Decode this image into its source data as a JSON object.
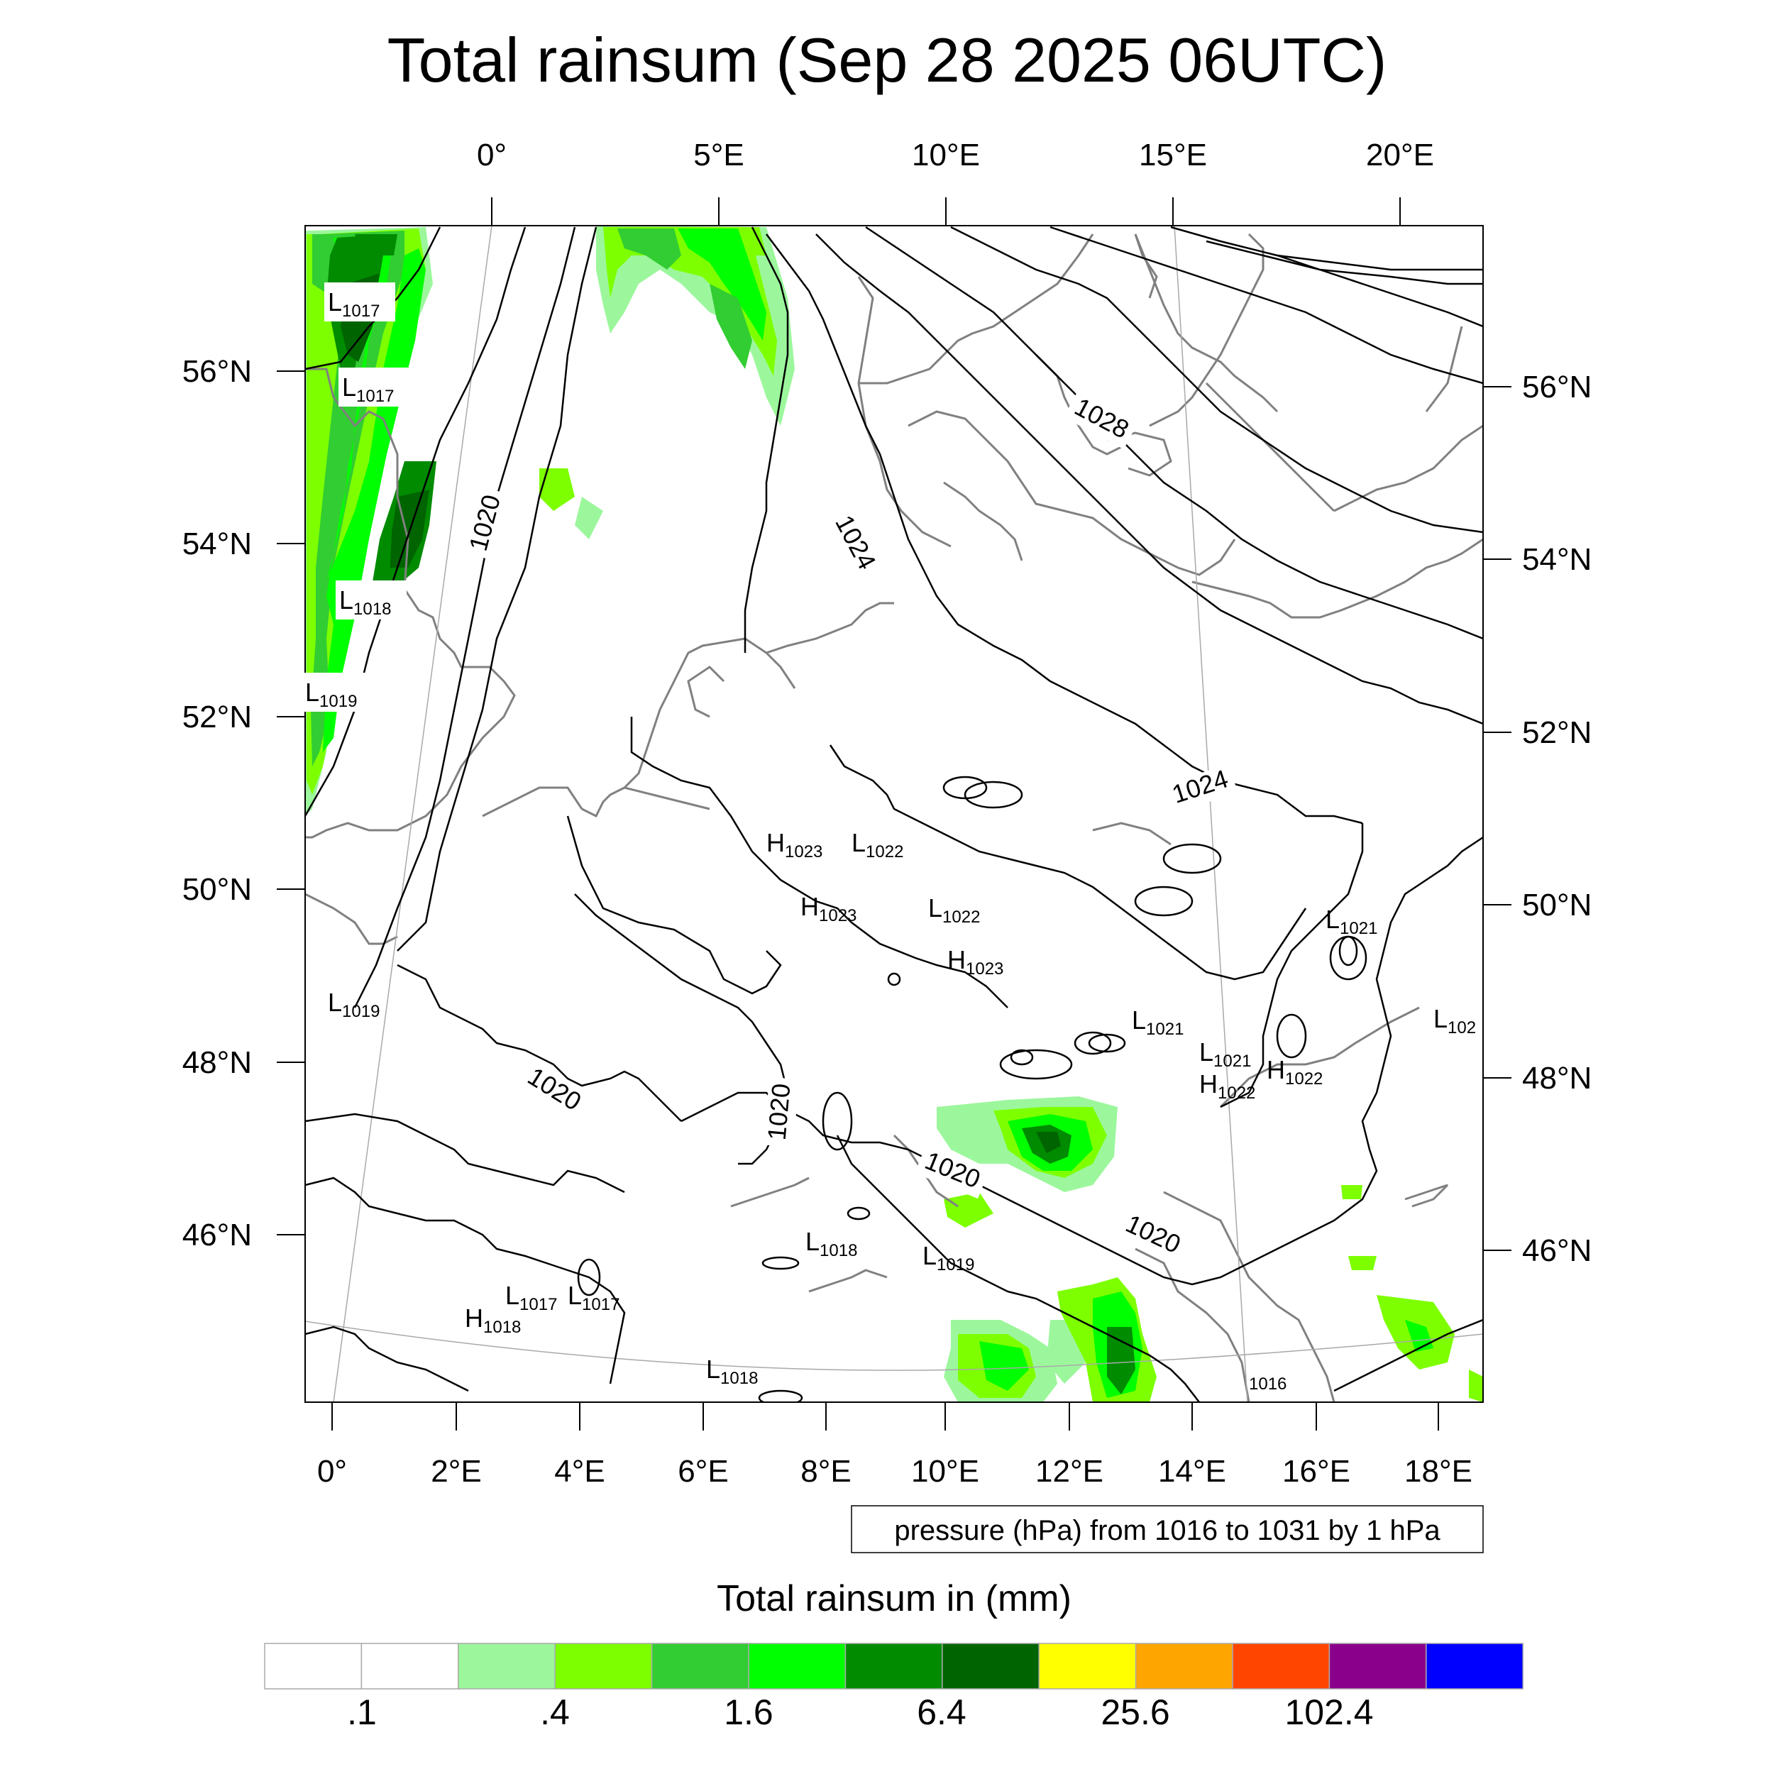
{
  "title": "Total rainsum (Sep 28 2025 06UTC)",
  "top_lon_labels": [
    "0°",
    "5°E",
    "10°E",
    "15°E",
    "20°E"
  ],
  "bottom_lon_labels": [
    "0°",
    "2°E",
    "4°E",
    "6°E",
    "8°E",
    "10°E",
    "12°E",
    "14°E",
    "16°E",
    "18°E"
  ],
  "left_lat_labels": [
    "56°N",
    "54°N",
    "52°N",
    "50°N",
    "48°N",
    "46°N"
  ],
  "right_lat_labels": [
    "56°N",
    "54°N",
    "52°N",
    "50°N",
    "48°N",
    "46°N"
  ],
  "contour_labels": [
    "1028",
    "1024",
    "1020",
    "1024",
    "1020",
    "1020",
    "1020",
    "1020"
  ],
  "pressure_centers": [
    {
      "type": "L",
      "value": "1017"
    },
    {
      "type": "L",
      "value": "1017"
    },
    {
      "type": "L",
      "value": "1018"
    },
    {
      "type": "L",
      "value": "1019"
    },
    {
      "type": "L",
      "value": "1019"
    },
    {
      "type": "H",
      "value": "1023"
    },
    {
      "type": "L",
      "value": "1022"
    },
    {
      "type": "H",
      "value": "1023"
    },
    {
      "type": "L",
      "value": "1022"
    },
    {
      "type": "H",
      "value": "1023"
    },
    {
      "type": "L",
      "value": "1021"
    },
    {
      "type": "L",
      "value": "1021"
    },
    {
      "type": "L",
      "value": "1021"
    },
    {
      "type": "H",
      "value": "1022"
    },
    {
      "type": "H",
      "value": "1022"
    },
    {
      "type": "L",
      "value": "1018"
    },
    {
      "type": "L",
      "value": "1019"
    },
    {
      "type": "L",
      "value": "1017"
    },
    {
      "type": "L",
      "value": "1017"
    },
    {
      "type": "H",
      "value": "1018"
    },
    {
      "type": "L",
      "value": "1018"
    },
    {
      "type": "L",
      "value": "102"
    }
  ],
  "edge_label": "1016",
  "contour_note": "pressure (hPa) from 1016 to 1031 by 1 hPa",
  "colorbar": {
    "title": "Total rainsum in (mm)",
    "colors": [
      "#ffffff",
      "#ffffff",
      "#9cf79c",
      "#7dff00",
      "#32cd32",
      "#00ff00",
      "#008b00",
      "#006400",
      "#ffff00",
      "#ffa500",
      "#ff4500",
      "#8b008b",
      "#0000ff"
    ],
    "labels": [
      ".1",
      ".4",
      "1.6",
      "6.4",
      "25.6",
      "102.4"
    ]
  },
  "rain_colors": {
    "light": "#9cf79c",
    "lime": "#7dff00",
    "mid": "#32cd32",
    "bright": "#00ff00",
    "dark": "#008b00",
    "darkest": "#006400"
  }
}
